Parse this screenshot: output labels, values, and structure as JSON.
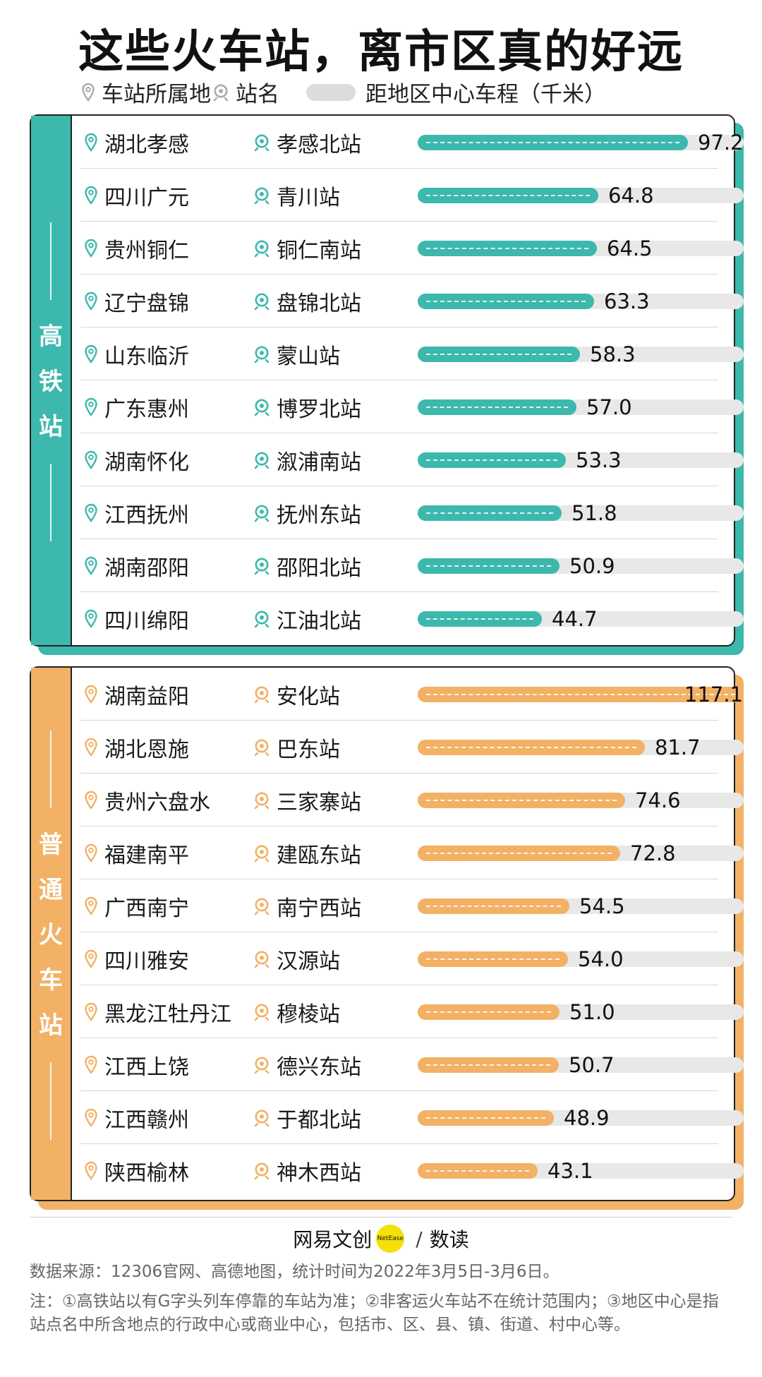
{
  "title": "这些火车站，离市区真的好远",
  "legend": {
    "place": "车站所属地",
    "station": "站名",
    "distance": "距地区中心车程（千米）"
  },
  "colors": {
    "hsr": "#3cb8ad",
    "normal": "#f2b165",
    "track": "#e8e8e8"
  },
  "icons": {
    "place": "location-pin-icon",
    "station": "train-icon"
  },
  "sections": [
    {
      "label": [
        "高",
        "铁",
        "站"
      ],
      "color": "#3cb8ad",
      "rows": [
        {
          "place": "湖北孝感",
          "station": "孝感北站",
          "value": "97.2"
        },
        {
          "place": "四川广元",
          "station": "青川站",
          "value": "64.8"
        },
        {
          "place": "贵州铜仁",
          "station": "铜仁南站",
          "value": "64.5"
        },
        {
          "place": "辽宁盘锦",
          "station": "盘锦北站",
          "value": "63.3"
        },
        {
          "place": "山东临沂",
          "station": "蒙山站",
          "value": "58.3"
        },
        {
          "place": "广东惠州",
          "station": "博罗北站",
          "value": "57.0"
        },
        {
          "place": "湖南怀化",
          "station": "溆浦南站",
          "value": "53.3"
        },
        {
          "place": "江西抚州",
          "station": "抚州东站",
          "value": "51.8"
        },
        {
          "place": "湖南邵阳",
          "station": "邵阳北站",
          "value": "50.9"
        },
        {
          "place": "四川绵阳",
          "station": "江油北站",
          "value": "44.7"
        }
      ]
    },
    {
      "label": [
        "普",
        "通",
        "火",
        "车",
        "站"
      ],
      "color": "#f2b165",
      "rows": [
        {
          "place": "湖南益阳",
          "station": "安化站",
          "value": "117.1"
        },
        {
          "place": "湖北恩施",
          "station": "巴东站",
          "value": "81.7"
        },
        {
          "place": "贵州六盘水",
          "station": "三家寨站",
          "value": "74.6"
        },
        {
          "place": "福建南平",
          "station": "建瓯东站",
          "value": "72.8"
        },
        {
          "place": "广西南宁",
          "station": "南宁西站",
          "value": "54.5"
        },
        {
          "place": "四川雅安",
          "station": "汉源站",
          "value": "54.0"
        },
        {
          "place": "黑龙江牡丹江",
          "station": "穆棱站",
          "value": "51.0"
        },
        {
          "place": "江西上饶",
          "station": "德兴东站",
          "value": "50.7"
        },
        {
          "place": "江西赣州",
          "station": "于都北站",
          "value": "48.9"
        },
        {
          "place": "陕西榆林",
          "station": "神木西站",
          "value": "43.1"
        }
      ]
    }
  ],
  "chart_data": {
    "type": "bar",
    "title": "这些火车站，离市区真的好远",
    "xlabel": "",
    "ylabel": "距地区中心车程（千米）",
    "xlim": [
      0,
      117.1
    ],
    "series": [
      {
        "name": "高铁站",
        "categories": [
          "孝感北站",
          "青川站",
          "铜仁南站",
          "盘锦北站",
          "蒙山站",
          "博罗北站",
          "溆浦南站",
          "抚州东站",
          "邵阳北站",
          "江油北站"
        ],
        "values": [
          97.2,
          64.8,
          64.5,
          63.3,
          58.3,
          57.0,
          53.3,
          51.8,
          50.9,
          44.7
        ]
      },
      {
        "name": "普通火车站",
        "categories": [
          "安化站",
          "巴东站",
          "三家寨站",
          "建瓯东站",
          "南宁西站",
          "汉源站",
          "穆棱站",
          "德兴东站",
          "于都北站",
          "神木西站"
        ],
        "values": [
          117.1,
          81.7,
          74.6,
          72.8,
          54.5,
          54.0,
          51.0,
          50.7,
          48.9,
          43.1
        ]
      }
    ]
  },
  "footer": {
    "brand_left": "网易文创",
    "brand_badge": "NetEase",
    "brand_sep": "/",
    "brand_right": "数读",
    "source": "数据来源：12306官网、高德地图，统计时间为2022年3月5日-3月6日。",
    "note": "注：①高铁站以有G字头列车停靠的车站为准；②非客运火车站不在统计范围内；③地区中心是指站点名中所含地点的行政中心或商业中心，包括市、区、县、镇、街道、村中心等。"
  }
}
